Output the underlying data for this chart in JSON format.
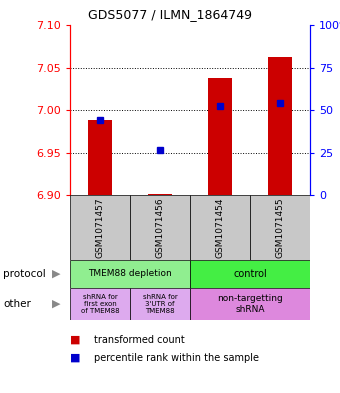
{
  "title": "GDS5077 / ILMN_1864749",
  "samples": [
    "GSM1071457",
    "GSM1071456",
    "GSM1071454",
    "GSM1071455"
  ],
  "red_values": [
    6.988,
    6.901,
    7.038,
    7.062
  ],
  "blue_values": [
    6.988,
    6.953,
    7.005,
    7.008
  ],
  "ylim_left": [
    6.9,
    7.1
  ],
  "ylim_right": [
    0,
    100
  ],
  "yticks_left": [
    6.9,
    6.95,
    7.0,
    7.05,
    7.1
  ],
  "yticks_right": [
    0,
    25,
    50,
    75,
    100
  ],
  "ytick_labels_right": [
    "0",
    "25",
    "50",
    "75",
    "100%"
  ],
  "gridlines": [
    6.95,
    7.0,
    7.05
  ],
  "bar_base": 6.9,
  "bar_color": "#CC0000",
  "dot_color": "#0000CC",
  "bg_color": "#C8C8C8",
  "left_label_color": "#FF0000",
  "right_label_color": "#0000FF",
  "proto_color_left": "#90EE90",
  "proto_color_right": "#44EE44",
  "other_color_left": "#DDAAEE",
  "other_color_right": "#DD88DD",
  "bar_width": 0.4
}
